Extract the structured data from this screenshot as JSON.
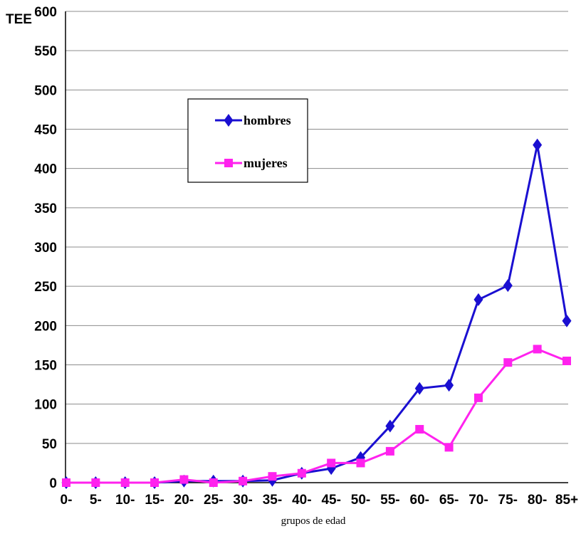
{
  "chart_data": {
    "type": "line",
    "title": "",
    "ylabel": "TEE",
    "xlabel": "grupos de edad",
    "ylim": [
      0,
      600
    ],
    "ystep": 50,
    "grid": "horizontal",
    "legend_position": "upper-left-inside",
    "categories": [
      "0-",
      "5-",
      "10-",
      "15-",
      "20-",
      "25-",
      "30-",
      "35-",
      "40-",
      "45-",
      "50-",
      "55-",
      "60-",
      "65-",
      "70-",
      "75-",
      "80-",
      "85+"
    ],
    "series": [
      {
        "name": "hombres",
        "color": "#1a0fd1",
        "marker": "diamond",
        "values": [
          0,
          0,
          0,
          0,
          2,
          2,
          2,
          3,
          12,
          18,
          32,
          72,
          120,
          124,
          233,
          251,
          430,
          206
        ]
      },
      {
        "name": "mujeres",
        "color": "#ff22ee",
        "marker": "square",
        "values": [
          0,
          0,
          0,
          0,
          4,
          0,
          2,
          8,
          12,
          25,
          25,
          40,
          68,
          45,
          108,
          153,
          170,
          155
        ]
      }
    ]
  }
}
